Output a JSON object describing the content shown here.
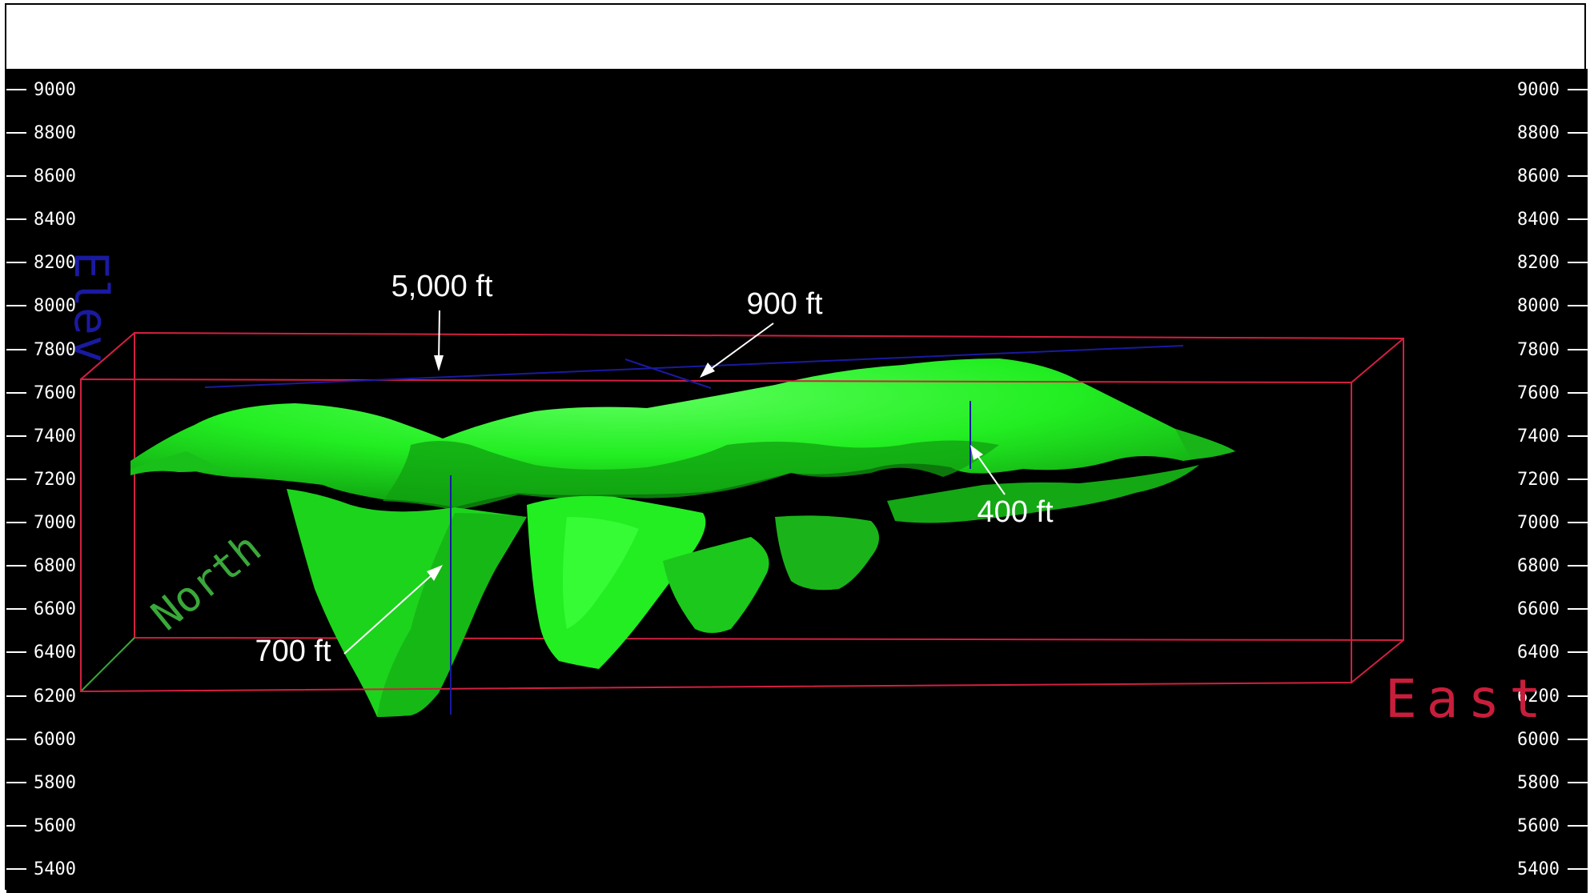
{
  "scale": {
    "ticks": [
      "9000",
      "8800",
      "8600",
      "8400",
      "8200",
      "8000",
      "7800",
      "7600",
      "7400",
      "7200",
      "7000",
      "6800",
      "6600",
      "6400",
      "6200",
      "6000",
      "5800",
      "5600",
      "5400"
    ]
  },
  "axes": {
    "elev_label": "Elev",
    "north_label": "North",
    "east_label": "East"
  },
  "annotations": {
    "length": "5,000 ft",
    "width": "900 ft",
    "depth_west": "700 ft",
    "depth_east": "400 ft"
  },
  "colors": {
    "background": "#000000",
    "body": "#22ee22",
    "box": "#d22040",
    "elev_axis": "#1a1aa0",
    "north_axis": "#3aa83a",
    "east_axis": "#c81e3c",
    "annotation": "#ffffff"
  }
}
